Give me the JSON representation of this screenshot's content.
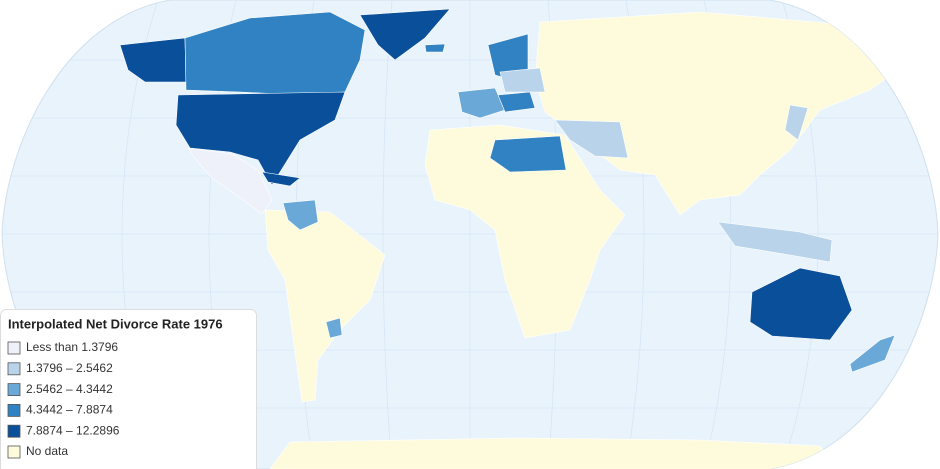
{
  "legend": {
    "title": "Interpolated Net Divorce Rate 1976",
    "items": [
      {
        "label": "Less than 1.3796",
        "color": "#eef0fa"
      },
      {
        "label": "1.3796 – 2.5462",
        "color": "#b9d4ea"
      },
      {
        "label": "2.5462 – 4.3442",
        "color": "#6aa8d8"
      },
      {
        "label": "4.3442 – 7.8874",
        "color": "#3182c2"
      },
      {
        "label": "7.8874 – 12.2896",
        "color": "#0a4f9a"
      },
      {
        "label": "No data",
        "color": "#fefbdc"
      }
    ]
  }
}
